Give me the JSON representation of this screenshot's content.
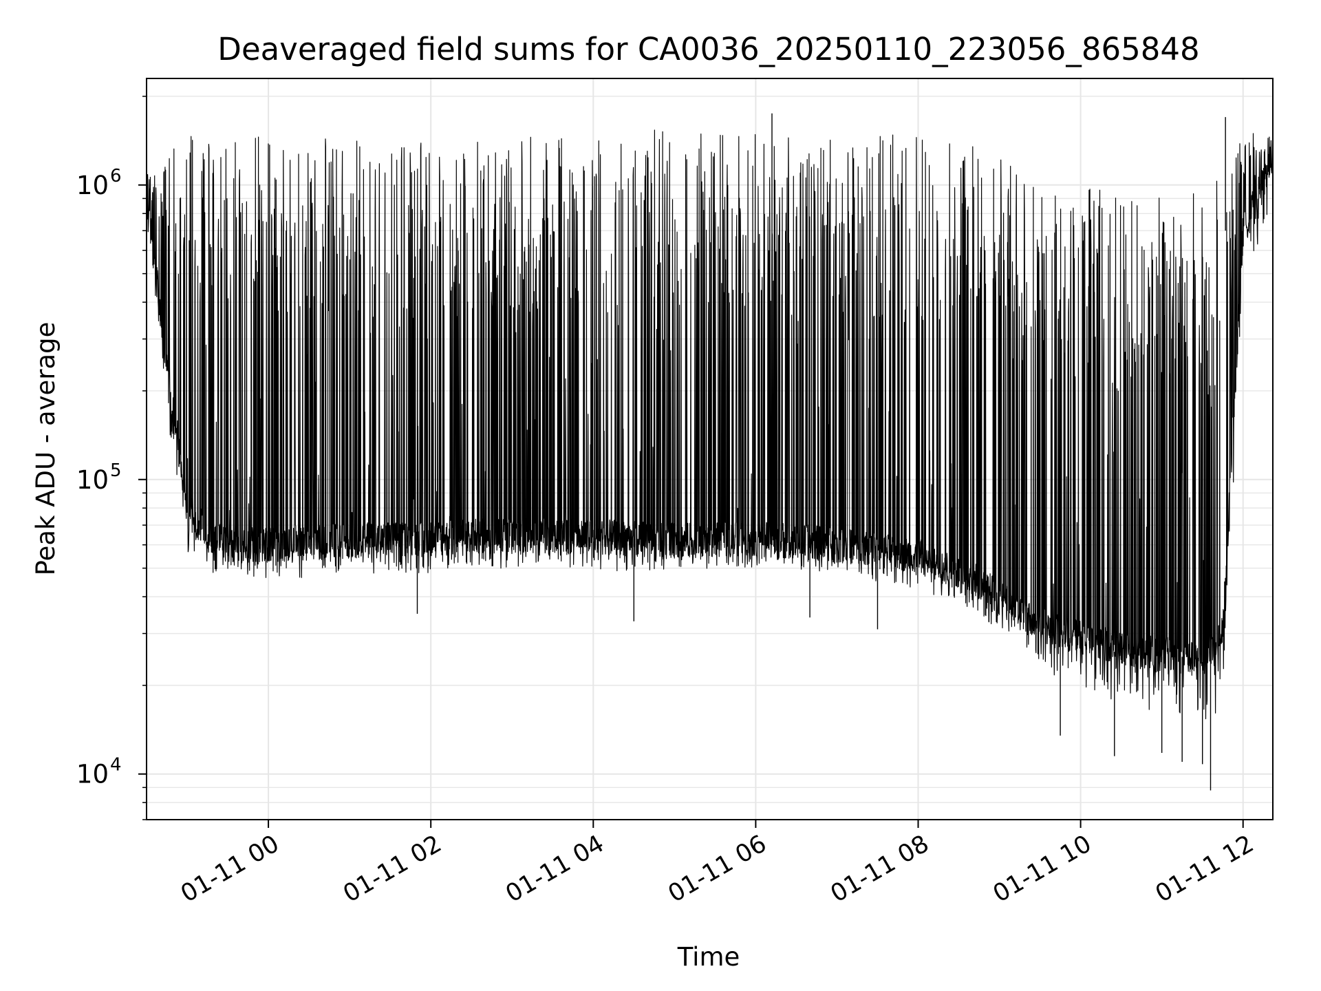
{
  "chart_data": {
    "type": "line",
    "title": "Deaveraged field sums for CA0036_20250110_223056_865848",
    "xlabel": "Time",
    "ylabel": "Peak ADU - average",
    "yscale": "log",
    "ylim": [
      7000,
      2300000
    ],
    "xlim": [
      "2025-01-10T22:30",
      "2025-01-11T12:22"
    ],
    "grid": true,
    "line_color": "#000000",
    "x_ticks": [
      {
        "value": "2025-01-11T00:00",
        "label": "01-11 00"
      },
      {
        "value": "2025-01-11T02:00",
        "label": "01-11 02"
      },
      {
        "value": "2025-01-11T04:00",
        "label": "01-11 04"
      },
      {
        "value": "2025-01-11T06:00",
        "label": "01-11 06"
      },
      {
        "value": "2025-01-11T08:00",
        "label": "01-11 08"
      },
      {
        "value": "2025-01-11T10:00",
        "label": "01-11 10"
      },
      {
        "value": "2025-01-11T12:00",
        "label": "01-11 12"
      }
    ],
    "y_ticks": [
      {
        "value": 10000,
        "base": "10",
        "exp": "4"
      },
      {
        "value": 100000,
        "base": "10",
        "exp": "5"
      },
      {
        "value": 1000000,
        "base": "10",
        "exp": "6"
      }
    ],
    "envelope": {
      "x": [
        "2025-01-10T22:30",
        "2025-01-10T22:45",
        "2025-01-10T23:00",
        "2025-01-10T23:15",
        "2025-01-10T23:30",
        "2025-01-11T00:00",
        "2025-01-11T01:00",
        "2025-01-11T02:00",
        "2025-01-11T03:00",
        "2025-01-11T04:00",
        "2025-01-11T05:00",
        "2025-01-11T06:00",
        "2025-01-11T07:00",
        "2025-01-11T08:00",
        "2025-01-11T08:45",
        "2025-01-11T09:15",
        "2025-01-11T09:45",
        "2025-01-11T10:15",
        "2025-01-11T10:45",
        "2025-01-11T11:15",
        "2025-01-11T11:30",
        "2025-01-11T11:45",
        "2025-01-11T12:00",
        "2025-01-11T12:22"
      ],
      "upper": [
        1100000,
        1300000,
        1500000,
        1400000,
        1500000,
        1500000,
        1450000,
        1400000,
        1450000,
        1500000,
        1550000,
        1500000,
        1550000,
        1450000,
        1400000,
        1100000,
        1050000,
        1000000,
        950000,
        900000,
        1000000,
        1050000,
        1500000,
        1500000
      ],
      "baseline": [
        900000,
        250000,
        80000,
        65000,
        60000,
        60000,
        62000,
        63000,
        65000,
        64000,
        62000,
        63000,
        60000,
        55000,
        45000,
        35000,
        30000,
        28000,
        26000,
        25000,
        24000,
        30000,
        700000,
        1200000
      ],
      "lower": [
        700000,
        150000,
        50000,
        45000,
        45000,
        42000,
        45000,
        45000,
        47000,
        45000,
        46000,
        47000,
        45000,
        40000,
        33000,
        25000,
        19000,
        16000,
        15000,
        14000,
        12000,
        15000,
        400000,
        800000
      ]
    },
    "extremes": [
      {
        "x": "2025-01-11T01:50",
        "y": 35000
      },
      {
        "x": "2025-01-11T04:30",
        "y": 33000
      },
      {
        "x": "2025-01-11T06:40",
        "y": 34000
      },
      {
        "x": "2025-01-11T07:30",
        "y": 31000
      },
      {
        "x": "2025-01-11T09:45",
        "y": 13500
      },
      {
        "x": "2025-01-11T10:25",
        "y": 11500
      },
      {
        "x": "2025-01-11T11:00",
        "y": 11800
      },
      {
        "x": "2025-01-11T11:15",
        "y": 11000
      },
      {
        "x": "2025-01-11T11:30",
        "y": 10800
      },
      {
        "x": "2025-01-11T11:36",
        "y": 8800
      },
      {
        "x": "2025-01-11T06:12",
        "y": 1750000
      },
      {
        "x": "2025-01-11T11:47",
        "y": 1700000
      }
    ]
  }
}
